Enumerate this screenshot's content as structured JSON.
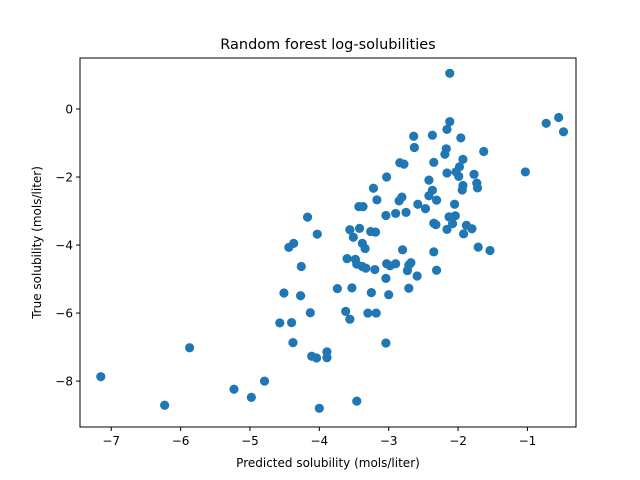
{
  "chart_data": {
    "type": "scatter",
    "title": "Random forest log-solubilities",
    "xlabel": "Predicted solubility (mols/liter)",
    "ylabel": "True solubility (mols/liter)",
    "xlim": [
      -7.45,
      -0.3
    ],
    "ylim": [
      -9.35,
      1.5
    ],
    "xticks": [
      -7,
      -6,
      -5,
      -4,
      -3,
      -2,
      -1
    ],
    "xtick_labels": [
      "−7",
      "−6",
      "−5",
      "−4",
      "−3",
      "−2",
      "−1"
    ],
    "yticks": [
      -8,
      -6,
      -4,
      -2,
      0
    ],
    "ytick_labels": [
      "−8",
      "−6",
      "−4",
      "−2",
      "0"
    ],
    "grid": false,
    "marker_color": "#1f77b4",
    "points": [
      [
        -2.12,
        1.05
      ],
      [
        -0.55,
        -0.25
      ],
      [
        -0.73,
        -0.42
      ],
      [
        -0.48,
        -0.67
      ],
      [
        -1.03,
        -1.85
      ],
      [
        -2.12,
        -0.37
      ],
      [
        -2.16,
        -0.6
      ],
      [
        -1.96,
        -0.85
      ],
      [
        -2.37,
        -0.77
      ],
      [
        -2.64,
        -0.8
      ],
      [
        -2.63,
        -1.13
      ],
      [
        -2.17,
        -1.17
      ],
      [
        -2.19,
        -1.33
      ],
      [
        -1.63,
        -1.25
      ],
      [
        -1.93,
        -1.48
      ],
      [
        -1.98,
        -1.7
      ],
      [
        -2.03,
        -1.85
      ],
      [
        -1.99,
        -1.98
      ],
      [
        -1.77,
        -1.92
      ],
      [
        -1.73,
        -2.18
      ],
      [
        -1.72,
        -2.32
      ],
      [
        -1.93,
        -2.25
      ],
      [
        -1.94,
        -2.38
      ],
      [
        -2.35,
        -1.57
      ],
      [
        -2.42,
        -2.09
      ],
      [
        -2.16,
        -1.88
      ],
      [
        -2.84,
        -1.58
      ],
      [
        -2.78,
        -1.62
      ],
      [
        -3.03,
        -2.0
      ],
      [
        -3.22,
        -2.33
      ],
      [
        -3.17,
        -2.67
      ],
      [
        -2.85,
        -2.7
      ],
      [
        -2.81,
        -2.59
      ],
      [
        -2.42,
        -2.55
      ],
      [
        -2.37,
        -2.39
      ],
      [
        -2.31,
        -2.68
      ],
      [
        -2.47,
        -2.93
      ],
      [
        -2.58,
        -2.8
      ],
      [
        -2.75,
        -3.04
      ],
      [
        -2.9,
        -3.07
      ],
      [
        -3.04,
        -3.13
      ],
      [
        -2.05,
        -2.8
      ],
      [
        -2.04,
        -3.14
      ],
      [
        -2.13,
        -3.17
      ],
      [
        -2.16,
        -3.54
      ],
      [
        -2.08,
        -3.37
      ],
      [
        -1.92,
        -3.67
      ],
      [
        -1.8,
        -3.52
      ],
      [
        -1.88,
        -3.42
      ],
      [
        -1.71,
        -4.06
      ],
      [
        -1.54,
        -4.16
      ],
      [
        -2.32,
        -3.4
      ],
      [
        -2.35,
        -3.36
      ],
      [
        -2.35,
        -4.2
      ],
      [
        -2.8,
        -4.14
      ],
      [
        -3.19,
        -3.62
      ],
      [
        -3.26,
        -3.6
      ],
      [
        -3.42,
        -3.51
      ],
      [
        -3.43,
        -2.87
      ],
      [
        -3.37,
        -2.87
      ],
      [
        -3.56,
        -3.55
      ],
      [
        -3.51,
        -3.77
      ],
      [
        -3.38,
        -3.95
      ],
      [
        -3.34,
        -4.1
      ],
      [
        -3.6,
        -4.4
      ],
      [
        -3.48,
        -4.42
      ],
      [
        -3.46,
        -4.56
      ],
      [
        -3.38,
        -4.63
      ],
      [
        -3.03,
        -4.55
      ],
      [
        -2.98,
        -4.61
      ],
      [
        -2.9,
        -4.55
      ],
      [
        -2.68,
        -4.52
      ],
      [
        -2.73,
        -4.75
      ],
      [
        -2.71,
        -4.59
      ],
      [
        -2.59,
        -4.91
      ],
      [
        -2.31,
        -4.74
      ],
      [
        -3.2,
        -4.72
      ],
      [
        -3.33,
        -4.68
      ],
      [
        -3.04,
        -4.98
      ],
      [
        -3.25,
        -5.4
      ],
      [
        -3.53,
        -5.26
      ],
      [
        -3.74,
        -5.28
      ],
      [
        -3.0,
        -5.46
      ],
      [
        -2.71,
        -5.27
      ],
      [
        -3.3,
        -6.0
      ],
      [
        -3.18,
        -6.0
      ],
      [
        -3.62,
        -5.95
      ],
      [
        -3.56,
        -6.18
      ],
      [
        -3.04,
        -6.88
      ],
      [
        -4.03,
        -3.68
      ],
      [
        -4.17,
        -3.18
      ],
      [
        -4.37,
        -3.95
      ],
      [
        -4.44,
        -4.07
      ],
      [
        -4.26,
        -4.63
      ],
      [
        -4.27,
        -5.49
      ],
      [
        -4.13,
        -5.99
      ],
      [
        -4.51,
        -5.41
      ],
      [
        -4.57,
        -6.29
      ],
      [
        -4.4,
        -6.28
      ],
      [
        -4.38,
        -6.87
      ],
      [
        -4.11,
        -7.27
      ],
      [
        -4.04,
        -7.32
      ],
      [
        -3.89,
        -7.14
      ],
      [
        -3.89,
        -7.31
      ],
      [
        -5.87,
        -7.02
      ],
      [
        -4.79,
        -8.0
      ],
      [
        -4.98,
        -8.48
      ],
      [
        -5.23,
        -8.24
      ],
      [
        -6.23,
        -8.71
      ],
      [
        -7.15,
        -7.87
      ],
      [
        -4.0,
        -8.8
      ],
      [
        -3.46,
        -8.59
      ]
    ]
  }
}
